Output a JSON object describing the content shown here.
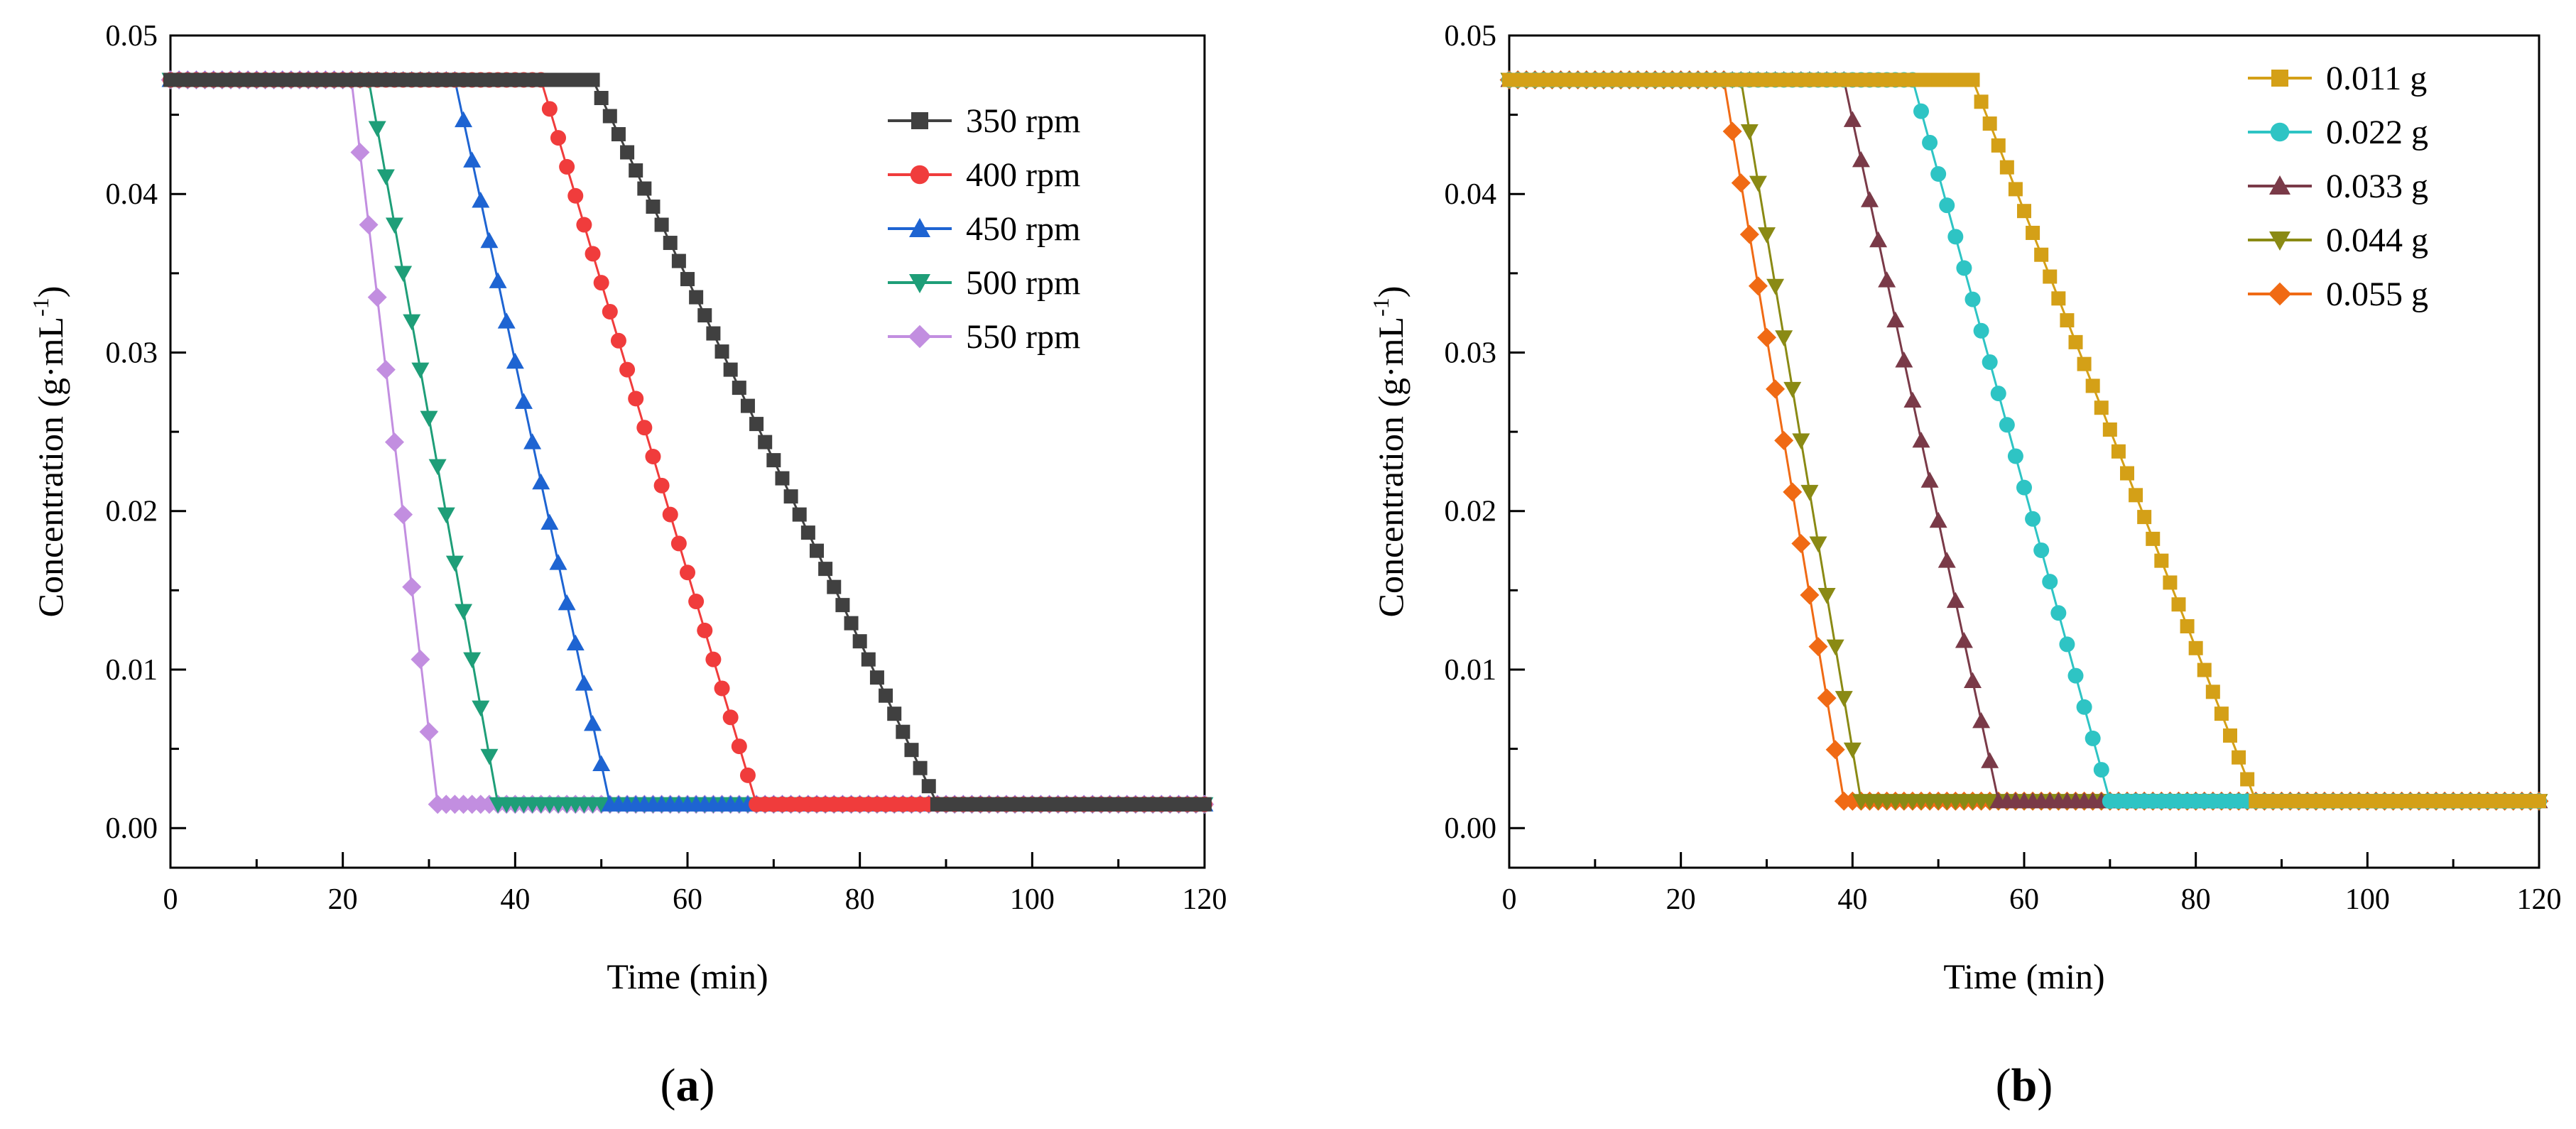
{
  "figure": {
    "panel_a_label": "a",
    "panel_b_label": "b"
  },
  "chart_data": [
    {
      "id": "a",
      "type": "line",
      "title": "",
      "xlabel": "Time (min)",
      "ylabel": "Concentration (g·mL",
      "ylabel_superscript": "-1",
      "ylabel_suffix": ")",
      "xlim": [
        0,
        120
      ],
      "ylim": [
        -0.0025,
        0.05
      ],
      "xticks": [
        0,
        20,
        40,
        60,
        80,
        100,
        120
      ],
      "yticks": [
        0.0,
        0.01,
        0.02,
        0.03,
        0.04,
        0.05
      ],
      "ytick_labels": [
        "0.00",
        "0.01",
        "0.02",
        "0.03",
        "0.04",
        "0.05"
      ],
      "legend_position": "top-right",
      "series": [
        {
          "name": "350 rpm",
          "color": "#404040",
          "marker": "square",
          "plateau": 0.0472,
          "baseline": 0.0015,
          "drop_start": 49,
          "drop_end": 89,
          "step": 1
        },
        {
          "name": "400 rpm",
          "color": "#f03c3c",
          "marker": "circle",
          "plateau": 0.0472,
          "baseline": 0.0015,
          "drop_start": 43,
          "drop_end": 68,
          "step": 1
        },
        {
          "name": "450 rpm",
          "color": "#1e64d2",
          "marker": "triangle-up",
          "plateau": 0.0472,
          "baseline": 0.0015,
          "drop_start": 33,
          "drop_end": 51,
          "step": 1
        },
        {
          "name": "500 rpm",
          "color": "#1e9e78",
          "marker": "triangle-down",
          "plateau": 0.0472,
          "baseline": 0.0015,
          "drop_start": 23,
          "drop_end": 38,
          "step": 1
        },
        {
          "name": "550 rpm",
          "color": "#c28ee0",
          "marker": "diamond",
          "plateau": 0.0472,
          "baseline": 0.0015,
          "drop_start": 21,
          "drop_end": 31,
          "step": 1
        }
      ]
    },
    {
      "id": "b",
      "type": "line",
      "title": "",
      "xlabel": "Time (min)",
      "ylabel": "Concentration (g·mL",
      "ylabel_superscript": "-1",
      "ylabel_suffix": ")",
      "xlim": [
        0,
        120
      ],
      "ylim": [
        -0.0025,
        0.05
      ],
      "xticks": [
        0,
        20,
        40,
        60,
        80,
        100,
        120
      ],
      "yticks": [
        0.0,
        0.01,
        0.02,
        0.03,
        0.04,
        0.05
      ],
      "ytick_labels": [
        "0.00",
        "0.01",
        "0.02",
        "0.03",
        "0.04",
        "0.05"
      ],
      "legend_position": "top-right",
      "series": [
        {
          "name": "0.011 g",
          "color": "#d4a017",
          "marker": "square",
          "plateau": 0.0472,
          "baseline": 0.0017,
          "drop_start": 54,
          "drop_end": 87,
          "step": 1
        },
        {
          "name": "0.022 g",
          "color": "#2ec4c4",
          "marker": "circle",
          "plateau": 0.0472,
          "baseline": 0.0017,
          "drop_start": 47,
          "drop_end": 70,
          "step": 1
        },
        {
          "name": "0.033 g",
          "color": "#7a3a48",
          "marker": "triangle-up",
          "plateau": 0.0472,
          "baseline": 0.0017,
          "drop_start": 39,
          "drop_end": 57,
          "step": 1
        },
        {
          "name": "0.044 g",
          "color": "#8a8a14",
          "marker": "triangle-down",
          "plateau": 0.0472,
          "baseline": 0.0017,
          "drop_start": 27,
          "drop_end": 41,
          "step": 1
        },
        {
          "name": "0.055 g",
          "color": "#f06a14",
          "marker": "diamond",
          "plateau": 0.0472,
          "baseline": 0.0017,
          "drop_start": 25,
          "drop_end": 39,
          "step": 1
        }
      ]
    }
  ]
}
